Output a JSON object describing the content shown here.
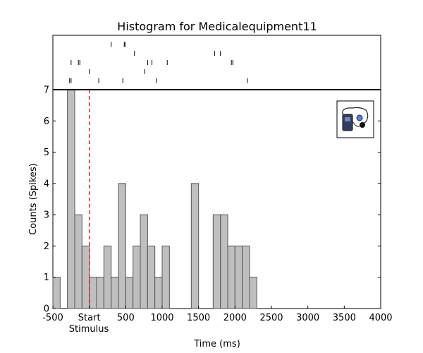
{
  "chart_data": {
    "type": "bar",
    "title": "Histogram for Medicalequipment11",
    "xlabel": "Time (ms)",
    "ylabel": "Counts (Spikes)",
    "xlim": [
      -500,
      4000
    ],
    "ylim": [
      0,
      7
    ],
    "grid": false,
    "bin_width": 100,
    "x_tick_labels": [
      {
        "value": -500,
        "label": "-500"
      },
      {
        "value": 0,
        "label": "Start"
      },
      {
        "value": 500,
        "label": "500"
      },
      {
        "value": 1000,
        "label": "1000"
      },
      {
        "value": 1500,
        "label": "1500"
      },
      {
        "value": 2000,
        "label": "2000"
      },
      {
        "value": 2500,
        "label": "2500"
      },
      {
        "value": 3000,
        "label": "3000"
      },
      {
        "value": 3500,
        "label": "3500"
      },
      {
        "value": 4000,
        "label": "4000"
      }
    ],
    "stimulus_label": "Stimulus",
    "y_ticks": [
      0,
      1,
      2,
      3,
      4,
      5,
      6,
      7
    ],
    "stimulus_marker_x": 0,
    "bins": [
      {
        "start": -500,
        "count": 1
      },
      {
        "start": -400,
        "count": 0
      },
      {
        "start": -300,
        "count": 7
      },
      {
        "start": -200,
        "count": 3
      },
      {
        "start": -100,
        "count": 2
      },
      {
        "start": 0,
        "count": 1
      },
      {
        "start": 100,
        "count": 1
      },
      {
        "start": 200,
        "count": 2
      },
      {
        "start": 300,
        "count": 1
      },
      {
        "start": 400,
        "count": 4
      },
      {
        "start": 500,
        "count": 1
      },
      {
        "start": 600,
        "count": 2
      },
      {
        "start": 700,
        "count": 3
      },
      {
        "start": 800,
        "count": 2
      },
      {
        "start": 900,
        "count": 1
      },
      {
        "start": 1000,
        "count": 2
      },
      {
        "start": 1100,
        "count": 0
      },
      {
        "start": 1200,
        "count": 0
      },
      {
        "start": 1300,
        "count": 0
      },
      {
        "start": 1400,
        "count": 4
      },
      {
        "start": 1500,
        "count": 0
      },
      {
        "start": 1600,
        "count": 0
      },
      {
        "start": 1700,
        "count": 3
      },
      {
        "start": 1800,
        "count": 3
      },
      {
        "start": 1900,
        "count": 2
      },
      {
        "start": 2000,
        "count": 2
      },
      {
        "start": 2100,
        "count": 2
      },
      {
        "start": 2200,
        "count": 1
      }
    ],
    "raster_trials": [
      [
        300,
        480,
        490
      ],
      [
        620,
        1720,
        1800
      ],
      [
        -250,
        -150,
        -130,
        800,
        860,
        1070,
        1950,
        1970
      ],
      [
        0,
        760
      ],
      [
        -270,
        -250,
        130,
        460,
        920,
        2170
      ]
    ],
    "colors": {
      "bar_fill": "#bfbfbf",
      "bar_edge": "#555555",
      "stimulus_line": "#ff0000",
      "raster_tick": "#000000"
    },
    "legend_icon": "medical-equipment-icon"
  }
}
